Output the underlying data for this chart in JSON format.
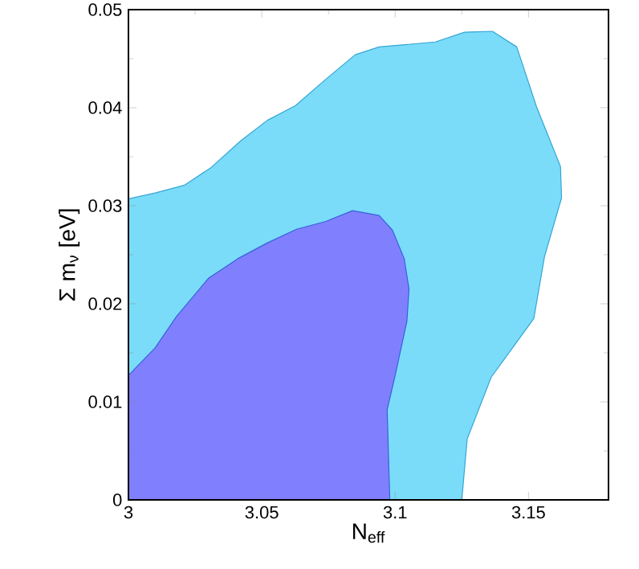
{
  "chart_data": {
    "type": "area",
    "xlabel": "N$_{eff}$",
    "ylabel": "Σ m$_{ν}$ [eV]",
    "xlim": [
      3,
      3.18
    ],
    "ylim": [
      0,
      0.05
    ],
    "xticks": [
      3,
      3.05,
      3.1,
      3.15
    ],
    "yticks": [
      0,
      0.01,
      0.02,
      0.03,
      0.04,
      0.05
    ],
    "series": [
      {
        "color": "#7adcf9",
        "x": [
          3.0,
          3.01,
          3.021,
          3.031,
          3.042,
          3.052,
          3.0626,
          3.074,
          3.085,
          3.094,
          3.115,
          3.126,
          3.1364,
          3.1456,
          3.153,
          3.162,
          3.1624,
          3.156,
          3.152,
          3.144,
          3.136,
          3.127,
          3.125,
          3.0
        ],
        "values": [
          0.0307,
          0.0313,
          0.0321,
          0.0339,
          0.0366,
          0.0387,
          0.0402,
          0.0429,
          0.0454,
          0.0462,
          0.0467,
          0.0477,
          0.0478,
          0.0462,
          0.0401,
          0.034,
          0.0308,
          0.0248,
          0.0185,
          0.0155,
          0.0125,
          0.0062,
          0,
          0
        ]
      },
      {
        "color": "#8080ff",
        "x": [
          3.0,
          3.01,
          3.018,
          3.03,
          3.041,
          3.052,
          3.063,
          3.074,
          3.084,
          3.094,
          3.099,
          3.1034,
          3.1052,
          3.1044,
          3.1,
          3.097,
          3.098,
          3.0
        ],
        "values": [
          0.0127,
          0.0155,
          0.0187,
          0.0226,
          0.0246,
          0.0262,
          0.0276,
          0.0284,
          0.0295,
          0.029,
          0.0275,
          0.0246,
          0.0215,
          0.0182,
          0.0127,
          0.0092,
          0,
          0
        ]
      }
    ]
  }
}
